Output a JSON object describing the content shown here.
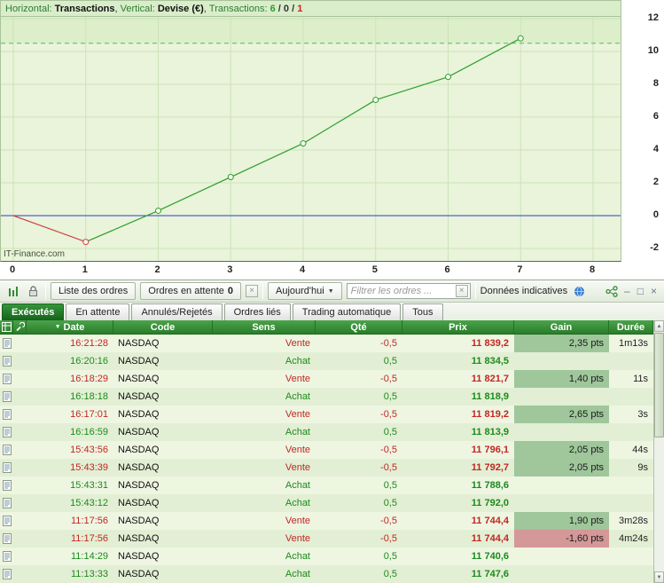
{
  "chart": {
    "legend": {
      "h_label": "Horizontal: ",
      "h_value": "Transactions",
      "sep1": ", ",
      "v_label": "Vertical: ",
      "v_value": "Devise (€)",
      "sep2": ", ",
      "t_label": "Transactions: ",
      "wins": "6",
      "slash1": " / ",
      "neutral": "0",
      "slash2": " / ",
      "losses": "1"
    },
    "watermark": "IT-Finance.com"
  },
  "chart_data": {
    "type": "line",
    "xlabel": "Transactions",
    "ylabel": "Devise (€)",
    "x": [
      0,
      1,
      2,
      3,
      4,
      5,
      6,
      7
    ],
    "values": [
      0,
      -1.6,
      0.3,
      2.35,
      4.4,
      7.05,
      8.45,
      10.8
    ],
    "x_ticks": [
      0,
      1,
      2,
      3,
      4,
      5,
      6,
      7,
      8
    ],
    "y_ticks": [
      12,
      10,
      8,
      6,
      4,
      2,
      0,
      -2
    ],
    "xlim": [
      0,
      8.4
    ],
    "ylim": [
      -2.5,
      12.1
    ],
    "zero_line": 0,
    "dashed_line": 10.5,
    "grid": true,
    "legend_position": "top",
    "colors": {
      "up": "#2f9e2f",
      "down": "#cf4545",
      "zero": "#2e3bd6",
      "dashed": "#5cb85c",
      "band": "#ddeeca",
      "plot_bg": "#e9f4da",
      "grid": "#cbe3b8",
      "marker_fill": "#f6fbef"
    }
  },
  "toolbar": {
    "liste_des_ordres": "Liste des ordres",
    "ordres_en_attente": "Ordres en attente",
    "ordres_en_attente_count": "0",
    "period": "Aujourd'hui",
    "filter_placeholder": "Filtrer les ordres ...",
    "indicative": "Données indicatives"
  },
  "icons": {
    "sort_desc": "▼",
    "dropdown": "▼",
    "clear": "×",
    "minimize": "–",
    "maximize": "□",
    "close": "×",
    "up_arrow": "▲",
    "down_arrow": "▼"
  },
  "tabs": [
    {
      "label": "Exécutés",
      "active": true
    },
    {
      "label": "En attente",
      "active": false
    },
    {
      "label": "Annulés/Rejetés",
      "active": false
    },
    {
      "label": "Ordres liés",
      "active": false
    },
    {
      "label": "Trading automatique",
      "active": false
    },
    {
      "label": "Tous",
      "active": false
    }
  ],
  "table": {
    "columns": [
      "Date",
      "Code",
      "Sens",
      "Qté",
      "Prix",
      "Gain",
      "Durée"
    ],
    "sort_column": "Date",
    "sort_direction": "desc",
    "rows": [
      {
        "time": "16:21:28",
        "code": "NASDAQ",
        "sens": "Vente",
        "qty": "-0,5",
        "prix": "11 839,2",
        "gain": "2,35 pts",
        "duration": "1m13s",
        "side": "sell",
        "gain_sign": "pos"
      },
      {
        "time": "16:20:16",
        "code": "NASDAQ",
        "sens": "Achat",
        "qty": "0,5",
        "prix": "11 834,5",
        "gain": "",
        "duration": "",
        "side": "buy",
        "gain_sign": ""
      },
      {
        "time": "16:18:29",
        "code": "NASDAQ",
        "sens": "Vente",
        "qty": "-0,5",
        "prix": "11 821,7",
        "gain": "1,40 pts",
        "duration": "11s",
        "side": "sell",
        "gain_sign": "pos"
      },
      {
        "time": "16:18:18",
        "code": "NASDAQ",
        "sens": "Achat",
        "qty": "0,5",
        "prix": "11 818,9",
        "gain": "",
        "duration": "",
        "side": "buy",
        "gain_sign": ""
      },
      {
        "time": "16:17:01",
        "code": "NASDAQ",
        "sens": "Vente",
        "qty": "-0,5",
        "prix": "11 819,2",
        "gain": "2,65 pts",
        "duration": "3s",
        "side": "sell",
        "gain_sign": "pos"
      },
      {
        "time": "16:16:59",
        "code": "NASDAQ",
        "sens": "Achat",
        "qty": "0,5",
        "prix": "11 813,9",
        "gain": "",
        "duration": "",
        "side": "buy",
        "gain_sign": ""
      },
      {
        "time": "15:43:56",
        "code": "NASDAQ",
        "sens": "Vente",
        "qty": "-0,5",
        "prix": "11 796,1",
        "gain": "2,05 pts",
        "duration": "44s",
        "side": "sell",
        "gain_sign": "pos"
      },
      {
        "time": "15:43:39",
        "code": "NASDAQ",
        "sens": "Vente",
        "qty": "-0,5",
        "prix": "11 792,7",
        "gain": "2,05 pts",
        "duration": "9s",
        "side": "sell",
        "gain_sign": "pos"
      },
      {
        "time": "15:43:31",
        "code": "NASDAQ",
        "sens": "Achat",
        "qty": "0,5",
        "prix": "11 788,6",
        "gain": "",
        "duration": "",
        "side": "buy",
        "gain_sign": ""
      },
      {
        "time": "15:43:12",
        "code": "NASDAQ",
        "sens": "Achat",
        "qty": "0,5",
        "prix": "11 792,0",
        "gain": "",
        "duration": "",
        "side": "buy",
        "gain_sign": ""
      },
      {
        "time": "11:17:56",
        "code": "NASDAQ",
        "sens": "Vente",
        "qty": "-0,5",
        "prix": "11 744,4",
        "gain": "1,90 pts",
        "duration": "3m28s",
        "side": "sell",
        "gain_sign": "pos"
      },
      {
        "time": "11:17:56",
        "code": "NASDAQ",
        "sens": "Vente",
        "qty": "-0,5",
        "prix": "11 744,4",
        "gain": "-1,60 pts",
        "duration": "4m24s",
        "side": "sell",
        "gain_sign": "neg"
      },
      {
        "time": "11:14:29",
        "code": "NASDAQ",
        "sens": "Achat",
        "qty": "0,5",
        "prix": "11 740,6",
        "gain": "",
        "duration": "",
        "side": "buy",
        "gain_sign": ""
      },
      {
        "time": "11:13:33",
        "code": "NASDAQ",
        "sens": "Achat",
        "qty": "0,5",
        "prix": "11 747,6",
        "gain": "",
        "duration": "",
        "side": "buy",
        "gain_sign": ""
      }
    ]
  }
}
